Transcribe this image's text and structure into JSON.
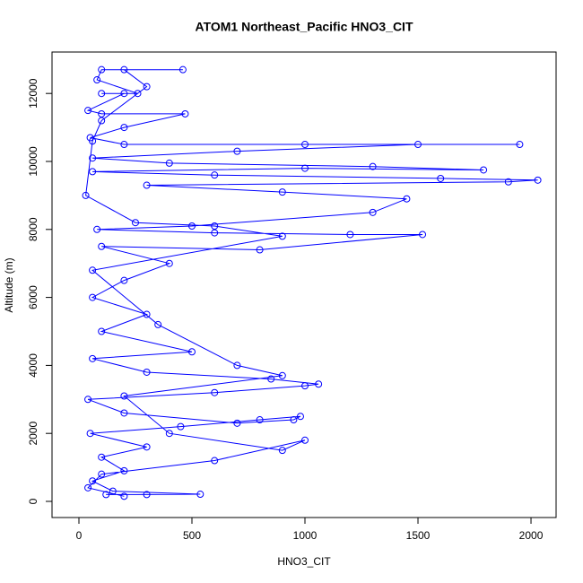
{
  "chart_data": {
    "type": "line",
    "title": "ATOM1 Northeast_Pacific HNO3_CIT",
    "x_label": "HNO3_CIT",
    "y_label": "Altitude (m)",
    "color": "#0000ff",
    "markers": true,
    "xlim": [
      -119,
      2111
    ],
    "ylim": [
      -475,
      13219
    ],
    "xticks": [
      0,
      500,
      1000,
      1500,
      2000
    ],
    "yticks": [
      0,
      2000,
      4000,
      6000,
      8000,
      10000,
      12000
    ],
    "x": [
      120,
      300,
      537,
      150,
      60,
      200,
      100,
      300,
      50,
      450,
      800,
      980,
      950,
      700,
      200,
      40,
      600,
      1000,
      1060,
      850,
      300,
      60,
      500,
      100,
      300,
      60,
      200,
      400,
      100,
      800,
      1520,
      1200,
      600,
      80,
      500,
      1300,
      1450,
      900,
      300,
      1900,
      2030,
      1600,
      600,
      60,
      1000,
      1790,
      1300,
      400,
      60,
      700,
      1500,
      1950,
      1000,
      200,
      50,
      200,
      470,
      100,
      40,
      200,
      100,
      260,
      80,
      100,
      460,
      200,
      300,
      100,
      60,
      30,
      250,
      600,
      900,
      60,
      350,
      700,
      900,
      200,
      400,
      900,
      1000,
      600,
      100,
      40,
      200
    ],
    "y": [
      200,
      200,
      210,
      300,
      600,
      900,
      1300,
      1600,
      2000,
      2200,
      2400,
      2500,
      2400,
      2300,
      2600,
      3000,
      3200,
      3400,
      3450,
      3600,
      3800,
      4200,
      4400,
      5000,
      5500,
      6000,
      6500,
      7000,
      7500,
      7400,
      7850,
      7850,
      7900,
      8000,
      8100,
      8500,
      8900,
      9100,
      9300,
      9400,
      9450,
      9500,
      9600,
      9700,
      9800,
      9750,
      9850,
      9950,
      10100,
      10300,
      10500,
      10500,
      10500,
      10500,
      10700,
      11000,
      11400,
      11400,
      11500,
      12000,
      12000,
      12000,
      12400,
      12700,
      12700,
      12700,
      12200,
      11200,
      10600,
      9000,
      8200,
      8100,
      7800,
      6800,
      5200,
      4000,
      3700,
      3100,
      2000,
      1500,
      1800,
      1200,
      800,
      400,
      150
    ]
  }
}
